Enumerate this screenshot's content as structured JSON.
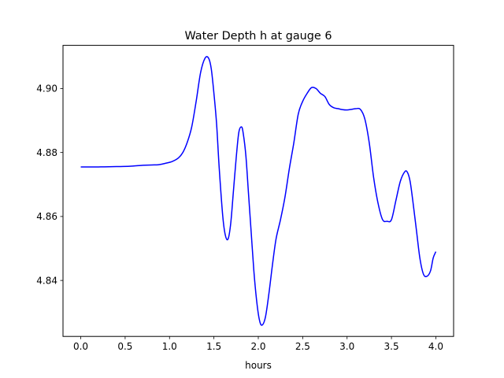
{
  "chart_data": {
    "type": "line",
    "title": "Water Depth h at gauge 6",
    "xlabel": "hours",
    "ylabel": "",
    "xlim": [
      -0.2,
      4.2
    ],
    "ylim": [
      4.8225,
      4.9135
    ],
    "xticks": [
      0.0,
      0.5,
      1.0,
      1.5,
      2.0,
      2.5,
      3.0,
      3.5,
      4.0
    ],
    "xtick_labels": [
      "0.0",
      "0.5",
      "1.0",
      "1.5",
      "2.0",
      "2.5",
      "3.0",
      "3.5",
      "4.0"
    ],
    "yticks": [
      4.84,
      4.86,
      4.88,
      4.9
    ],
    "ytick_labels": [
      "4.84",
      "4.86",
      "4.88",
      "4.90"
    ],
    "grid": false,
    "series": [
      {
        "color": "#0000ff",
        "x": [
          0.0,
          0.2,
          0.4,
          0.55,
          0.7,
          0.8,
          0.88,
          0.95,
          1.03,
          1.1,
          1.15,
          1.2,
          1.25,
          1.3,
          1.35,
          1.4,
          1.44,
          1.47,
          1.5,
          1.53,
          1.56,
          1.6,
          1.63,
          1.66,
          1.69,
          1.72,
          1.75,
          1.78,
          1.81,
          1.83,
          1.86,
          1.89,
          1.92,
          1.95,
          1.98,
          2.01,
          2.04,
          2.08,
          2.12,
          2.16,
          2.2,
          2.25,
          2.3,
          2.35,
          2.4,
          2.45,
          2.5,
          2.55,
          2.6,
          2.65,
          2.7,
          2.75,
          2.8,
          2.85,
          2.9,
          2.95,
          3.0,
          3.05,
          3.1,
          3.15,
          3.2,
          3.25,
          3.3,
          3.35,
          3.4,
          3.45,
          3.5,
          3.55,
          3.6,
          3.65,
          3.68,
          3.71,
          3.74,
          3.78,
          3.82,
          3.86,
          3.9,
          3.94,
          3.97,
          4.0
        ],
        "y": [
          4.8755,
          4.8755,
          4.8756,
          4.8757,
          4.876,
          4.8761,
          4.8762,
          4.8766,
          4.8772,
          4.8783,
          4.88,
          4.8832,
          4.888,
          4.896,
          4.905,
          4.9095,
          4.9095,
          4.9062,
          4.8985,
          4.889,
          4.875,
          4.86,
          4.854,
          4.853,
          4.858,
          4.868,
          4.878,
          4.8862,
          4.888,
          4.886,
          4.879,
          4.867,
          4.855,
          4.843,
          4.834,
          4.828,
          4.826,
          4.8285,
          4.836,
          4.845,
          4.853,
          4.859,
          4.866,
          4.875,
          4.883,
          4.892,
          4.896,
          4.8985,
          4.9003,
          4.9,
          4.8985,
          4.8975,
          4.895,
          4.894,
          4.8937,
          4.8934,
          4.8933,
          4.8935,
          4.8937,
          4.8935,
          4.8905,
          4.883,
          4.872,
          4.864,
          4.859,
          4.8585,
          4.859,
          4.865,
          4.871,
          4.874,
          4.8738,
          4.871,
          4.865,
          4.856,
          4.847,
          4.842,
          4.8413,
          4.843,
          4.847,
          4.849
        ]
      }
    ]
  }
}
